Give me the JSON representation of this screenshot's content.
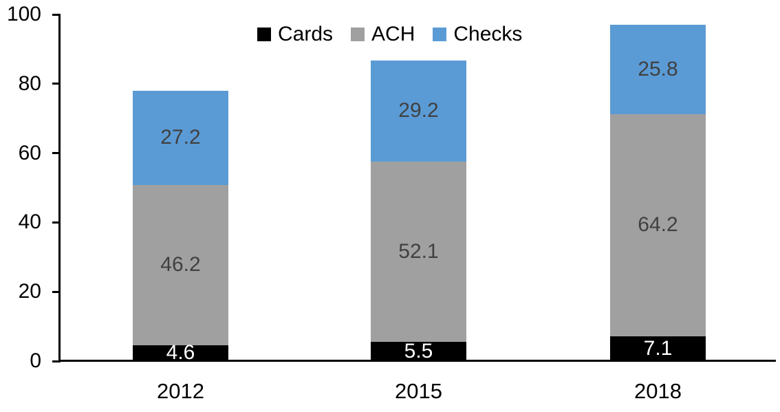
{
  "chart_data": {
    "type": "bar",
    "stacked": true,
    "categories": [
      "2012",
      "2015",
      "2018"
    ],
    "series": [
      {
        "name": "Cards",
        "color": "#000000",
        "label_color": "#ffffff",
        "values": [
          4.6,
          5.5,
          7.1
        ]
      },
      {
        "name": "ACH",
        "color": "#A0A0A0",
        "label_color": "#404040",
        "values": [
          46.2,
          52.1,
          64.2
        ]
      },
      {
        "name": "Checks",
        "color": "#5B9BD5",
        "label_color": "#404040",
        "values": [
          27.2,
          29.2,
          25.8
        ]
      }
    ],
    "y_ticks": [
      0,
      20,
      40,
      60,
      80,
      100
    ],
    "ylim": [
      0,
      100
    ],
    "legend_position": "top",
    "grid": false,
    "axis_color": "#000000",
    "background_color": "#ffffff"
  }
}
